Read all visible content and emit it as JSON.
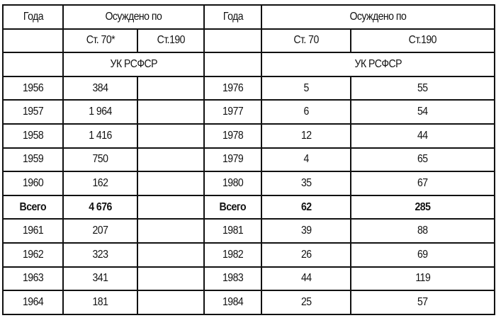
{
  "header": {
    "row1": {
      "year_left": "Года",
      "convicted_left": "Осуждено по",
      "year_right": "Года",
      "convicted_right": "Осуждено по"
    },
    "row2": {
      "art70_left": "Ст. 70*",
      "art190_left": "Ст.190",
      "art70_right": "Ст. 70",
      "art190_right": "Ст.190"
    },
    "row3": {
      "code_left": "УК РСФСР",
      "code_right": "УК РСФСР"
    }
  },
  "rows": [
    {
      "year_l": "1956",
      "art70_l": "384",
      "art190_l": "",
      "year_r": "1976",
      "art70_r": "5",
      "art190_r": "55"
    },
    {
      "year_l": "1957",
      "art70_l": "1 964",
      "art190_l": "",
      "year_r": "1977",
      "art70_r": "6",
      "art190_r": "54"
    },
    {
      "year_l": "1958",
      "art70_l": "1 416",
      "art190_l": "",
      "year_r": "1978",
      "art70_r": "12",
      "art190_r": "44"
    },
    {
      "year_l": "1959",
      "art70_l": "750",
      "art190_l": "",
      "year_r": "1979",
      "art70_r": "4",
      "art190_r": "65"
    },
    {
      "year_l": "1960",
      "art70_l": "162",
      "art190_l": "",
      "year_r": "1980",
      "art70_r": "35",
      "art190_r": "67"
    },
    {
      "year_l": "Всего",
      "art70_l": "4 676",
      "art190_l": "",
      "year_r": "Всего",
      "art70_r": "62",
      "art190_r": "285",
      "bold": true
    },
    {
      "year_l": "1961",
      "art70_l": "207",
      "art190_l": "",
      "year_r": "1981",
      "art70_r": "39",
      "art190_r": "88"
    },
    {
      "year_l": "1962",
      "art70_l": "323",
      "art190_l": "",
      "year_r": "1982",
      "art70_r": "26",
      "art190_r": "69"
    },
    {
      "year_l": "1963",
      "art70_l": "341",
      "art190_l": "",
      "year_r": "1983",
      "art70_r": "44",
      "art190_r": "119"
    },
    {
      "year_l": "1964",
      "art70_l": "181",
      "art190_l": "",
      "year_r": "1984",
      "art70_r": "25",
      "art190_r": "57"
    }
  ]
}
